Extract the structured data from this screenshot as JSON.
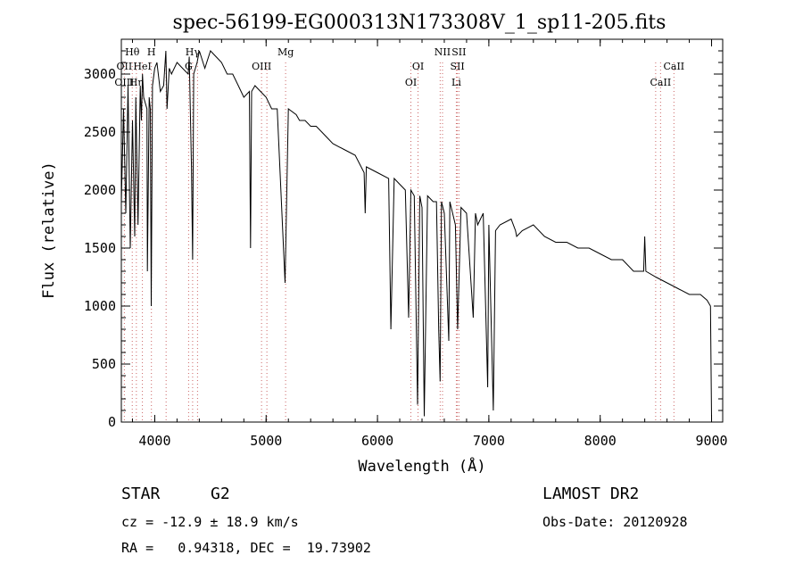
{
  "chart_data": {
    "type": "line",
    "title": "spec-56199-EG000313N173308V_1_sp11-205.fits",
    "xlabel": "Wavelength (Å)",
    "ylabel": "Flux (relative)",
    "xlim": [
      3700,
      9100
    ],
    "ylim": [
      0,
      3300
    ],
    "xticks": [
      "4000",
      "5000",
      "6000",
      "7000",
      "8000",
      "9000"
    ],
    "yticks": [
      "0",
      "500",
      "1000",
      "1500",
      "2000",
      "2500",
      "3000"
    ],
    "grid": false,
    "series": [
      {
        "x": [
          3700,
          3720,
          3740,
          3760,
          3780,
          3800,
          3820,
          3830,
          3850,
          3870,
          3880,
          3890,
          3900,
          3930,
          3934,
          3950,
          3960,
          3968,
          3980,
          4000,
          4020,
          4050,
          4080,
          4100,
          4110,
          4130,
          4150,
          4200,
          4250,
          4300,
          4310,
          4330,
          4340,
          4350,
          4380,
          4400,
          4450,
          4500,
          4550,
          4600,
          4650,
          4700,
          4750,
          4800,
          4850,
          4860,
          4870,
          4900,
          4950,
          5000,
          5050,
          5100,
          5170,
          5200,
          5270,
          5300,
          5350,
          5400,
          5450,
          5500,
          5550,
          5600,
          5700,
          5800,
          5880,
          5890,
          5900,
          6000,
          6100,
          6120,
          6150,
          6200,
          6250,
          6280,
          6300,
          6330,
          6360,
          6380,
          6400,
          6420,
          6450,
          6500,
          6530,
          6550,
          6563,
          6575,
          6600,
          6640,
          6650,
          6700,
          6720,
          6750,
          6800,
          6860,
          6880,
          6900,
          6950,
          6990,
          7000,
          7040,
          7060,
          7100,
          7200,
          7240,
          7250,
          7300,
          7400,
          7500,
          7600,
          7700,
          7800,
          7900,
          8000,
          8100,
          8200,
          8300,
          8390,
          8400,
          8410,
          8500,
          8600,
          8700,
          8800,
          8900,
          8960,
          8990,
          9000
        ],
        "values": [
          1900,
          2700,
          1800,
          2900,
          1500,
          2600,
          1600,
          2800,
          1700,
          2900,
          2600,
          3000,
          2800,
          2700,
          1300,
          2800,
          2700,
          1000,
          2900,
          3050,
          3100,
          2850,
          2900,
          3200,
          2700,
          3050,
          3000,
          3100,
          3050,
          3000,
          3150,
          2200,
          1400,
          3000,
          3100,
          3200,
          3050,
          3200,
          3150,
          3100,
          3000,
          3000,
          2900,
          2800,
          2850,
          1500,
          2850,
          2900,
          2850,
          2800,
          2700,
          2700,
          1200,
          2700,
          2650,
          2600,
          2600,
          2550,
          2550,
          2500,
          2450,
          2400,
          2350,
          2300,
          2150,
          1800,
          2200,
          2150,
          2100,
          800,
          2100,
          2050,
          2000,
          900,
          2000,
          1950,
          150,
          1950,
          1850,
          50,
          1950,
          1900,
          1900,
          800,
          350,
          1900,
          1800,
          700,
          1900,
          1700,
          800,
          1850,
          1800,
          900,
          1800,
          1700,
          1800,
          300,
          1700,
          100,
          1650,
          1700,
          1750,
          1650,
          1600,
          1650,
          1700,
          1600,
          1550,
          1550,
          1500,
          1500,
          1450,
          1400,
          1400,
          1300,
          1300,
          1600,
          1300,
          1250,
          1200,
          1150,
          1100,
          1100,
          1050,
          1000,
          30
        ]
      }
    ],
    "line_labels": [
      {
        "name": "Hθ",
        "x": 3798,
        "row": "top"
      },
      {
        "name": "H",
        "x": 3970,
        "row": "top"
      },
      {
        "name": "Hγ",
        "x": 4340,
        "row": "top"
      },
      {
        "name": "Mg",
        "x": 5175,
        "row": "top"
      },
      {
        "name": "NII",
        "x": 6584,
        "row": "top"
      },
      {
        "name": "SII",
        "x": 6731,
        "row": "top"
      },
      {
        "name": "OII",
        "x": 3727,
        "row": "mid"
      },
      {
        "name": "HeI",
        "x": 3889,
        "row": "mid"
      },
      {
        "name": "G",
        "x": 4304,
        "row": "mid"
      },
      {
        "name": "OIII",
        "x": 4959,
        "row": "mid"
      },
      {
        "name": "OI",
        "x": 6364,
        "row": "mid"
      },
      {
        "name": "SII",
        "x": 6717,
        "row": "mid"
      },
      {
        "name": "CaII",
        "x": 8662,
        "row": "mid"
      },
      {
        "name": "OIII",
        "x": 3727,
        "row": "low"
      },
      {
        "name": "Hη",
        "x": 3835,
        "row": "low"
      },
      {
        "name": "OI",
        "x": 6300,
        "row": "low"
      },
      {
        "name": "Li",
        "x": 6708,
        "row": "low"
      },
      {
        "name": "CaII",
        "x": 8542,
        "row": "low"
      }
    ],
    "marker_lines": [
      3727,
      3798,
      3835,
      3889,
      3970,
      4102,
      4304,
      4340,
      4384,
      4959,
      5007,
      5175,
      6300,
      6364,
      6563,
      6584,
      6708,
      6717,
      6731,
      8498,
      8542,
      8662
    ],
    "colors": {
      "spectrum": "#000000",
      "marker": "#cc6666"
    }
  },
  "info": {
    "class_label": "STAR",
    "subclass_label": "G2",
    "survey_label": "LAMOST DR2",
    "cz_label": "cz = -12.9 ± 18.9 km/s",
    "obs_date_label": "Obs-Date: 20120928",
    "coords_label": "RA =   0.94318, DEC =  19.73902"
  }
}
